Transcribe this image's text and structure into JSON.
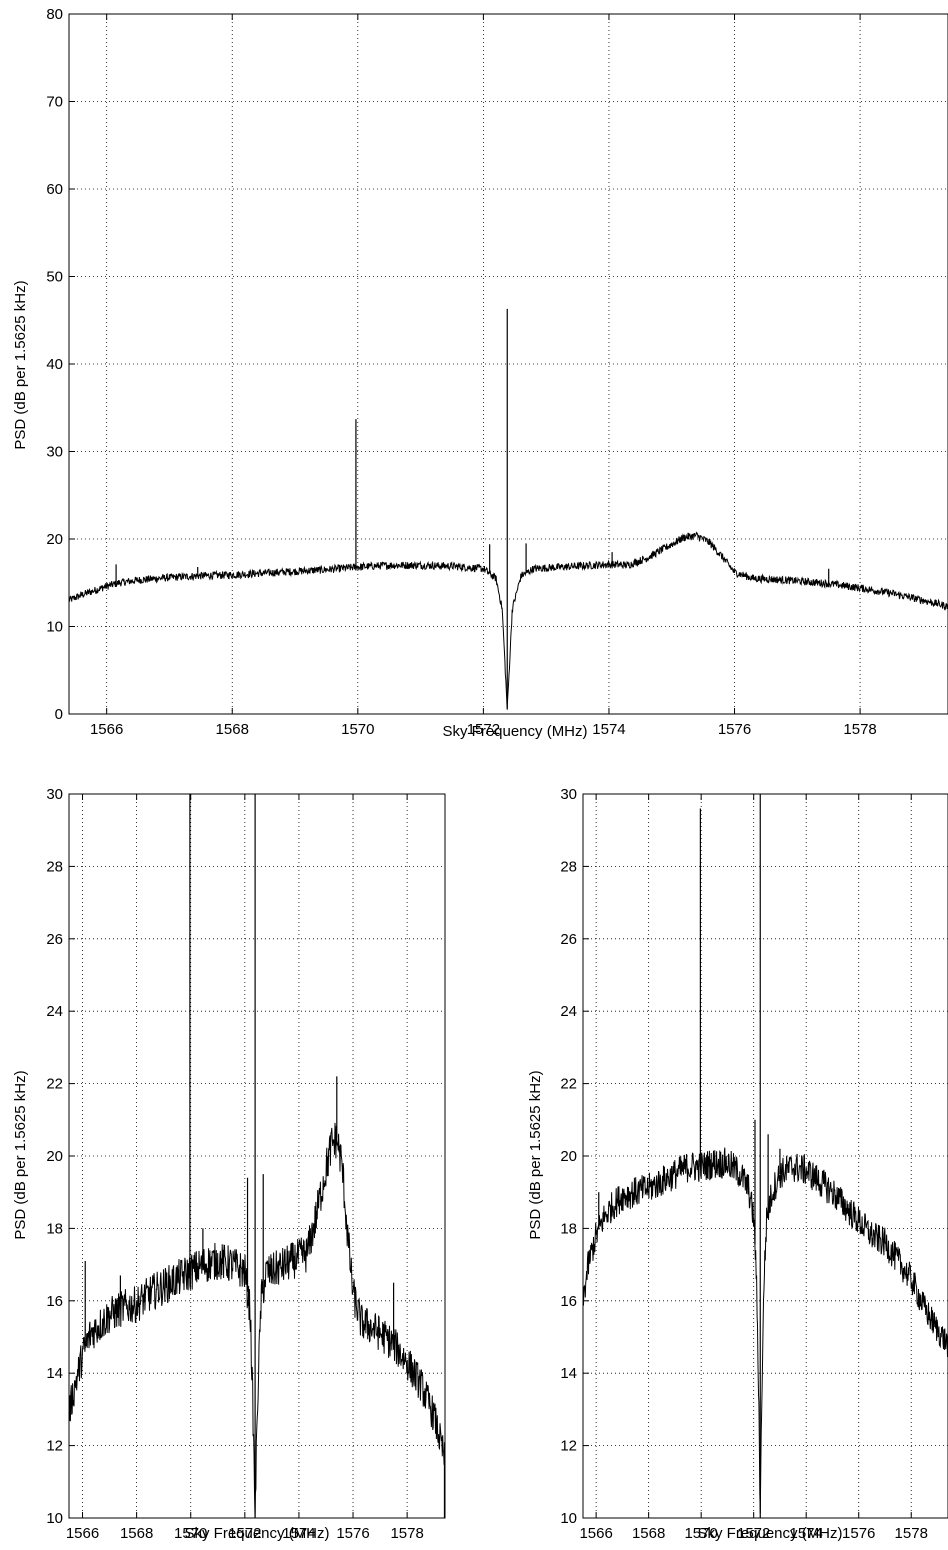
{
  "figure": {
    "background": "#ffffff",
    "line_color": "#000000",
    "grid_style": "dotted"
  },
  "chart_data": [
    {
      "id": "top",
      "type": "line",
      "title": "",
      "xlabel": "Sky Frequency (MHz)",
      "ylabel": "PSD (dB per 1.5625 kHz)",
      "xlim": [
        1565.4,
        1579.4
      ],
      "ylim": [
        0,
        80
      ],
      "xticks": [
        1566,
        1568,
        1570,
        1572,
        1574,
        1576,
        1578
      ],
      "yticks": [
        0,
        10,
        20,
        30,
        40,
        50,
        60,
        70,
        80
      ],
      "grid": true,
      "series": [
        {
          "x": [
            1565.4,
            1565.6,
            1565.8,
            1566.0,
            1566.2,
            1566.5,
            1567.0,
            1567.5,
            1568.0,
            1568.5,
            1569.0,
            1569.5,
            1570.0,
            1570.5,
            1571.0,
            1571.5,
            1572.0,
            1572.2,
            1572.3,
            1572.38,
            1572.46,
            1572.6,
            1572.8,
            1573.0,
            1573.5,
            1574.0,
            1574.3,
            1574.6,
            1574.9,
            1575.2,
            1575.4,
            1575.6,
            1575.8,
            1576.0,
            1576.3,
            1576.6,
            1577.0,
            1577.5,
            1578.0,
            1578.5,
            1579.0,
            1579.4
          ],
          "y": [
            13.0,
            13.6,
            14.1,
            14.6,
            15.0,
            15.3,
            15.6,
            15.8,
            15.9,
            16.1,
            16.3,
            16.5,
            16.8,
            17.0,
            17.0,
            16.9,
            16.6,
            15.5,
            12.0,
            0.5,
            12.0,
            15.8,
            16.6,
            16.7,
            16.9,
            17.1,
            17.0,
            17.8,
            19.0,
            20.2,
            20.4,
            19.6,
            18.0,
            16.2,
            15.5,
            15.4,
            15.2,
            14.9,
            14.4,
            13.8,
            13.0,
            12.3
          ],
          "noise": 0.4
        }
      ],
      "spikes": [
        {
          "x": 1566.15,
          "y": 17.1
        },
        {
          "x": 1567.45,
          "y": 16.8
        },
        {
          "x": 1569.97,
          "y": 33.7
        },
        {
          "x": 1572.1,
          "y": 19.4
        },
        {
          "x": 1572.38,
          "y": 46.3
        },
        {
          "x": 1572.68,
          "y": 19.5
        },
        {
          "x": 1574.05,
          "y": 18.5
        },
        {
          "x": 1577.5,
          "y": 16.6
        }
      ]
    },
    {
      "id": "bottom-left",
      "type": "line",
      "title": "",
      "xlabel": "Sky Frequency (MHz)",
      "ylabel": "PSD (dB per 1.5625 kHz)",
      "xlim": [
        1565.5,
        1579.4
      ],
      "ylim": [
        10,
        30
      ],
      "xticks": [
        1566,
        1568,
        1570,
        1572,
        1574,
        1576,
        1578
      ],
      "yticks": [
        10,
        12,
        14,
        16,
        18,
        20,
        22,
        24,
        26,
        28,
        30
      ],
      "grid": true,
      "series": [
        {
          "x": [
            1565.5,
            1565.7,
            1566.0,
            1566.3,
            1566.6,
            1567.0,
            1567.5,
            1568.0,
            1568.5,
            1569.0,
            1569.5,
            1570.0,
            1570.5,
            1571.0,
            1571.5,
            1572.0,
            1572.2,
            1572.3,
            1572.38,
            1572.46,
            1572.6,
            1572.8,
            1573.0,
            1573.5,
            1574.0,
            1574.3,
            1574.6,
            1574.9,
            1575.2,
            1575.4,
            1575.6,
            1575.8,
            1576.0,
            1576.3,
            1576.6,
            1577.0,
            1577.5,
            1578.0,
            1578.5,
            1579.0,
            1579.4
          ],
          "y": [
            12.9,
            13.6,
            14.5,
            15.1,
            15.3,
            15.6,
            15.8,
            15.9,
            16.2,
            16.4,
            16.6,
            16.8,
            17.0,
            17.1,
            17.0,
            16.8,
            15.7,
            13.0,
            10.0,
            13.0,
            16.0,
            16.8,
            16.8,
            17.0,
            17.2,
            17.3,
            18.2,
            19.3,
            20.3,
            20.5,
            19.7,
            17.8,
            16.2,
            15.4,
            15.3,
            15.1,
            14.8,
            14.3,
            13.7,
            12.8,
            11.6
          ],
          "noise": 0.45
        }
      ],
      "spikes": [
        {
          "x": 1566.1,
          "y": 17.1
        },
        {
          "x": 1567.4,
          "y": 16.7
        },
        {
          "x": 1569.97,
          "y": 30
        },
        {
          "x": 1570.45,
          "y": 18.0
        },
        {
          "x": 1572.1,
          "y": 19.4
        },
        {
          "x": 1572.38,
          "y": 30
        },
        {
          "x": 1572.68,
          "y": 19.5
        },
        {
          "x": 1575.4,
          "y": 22.2
        },
        {
          "x": 1577.5,
          "y": 16.5
        },
        {
          "x": 1579.38,
          "y": 10.0
        }
      ]
    },
    {
      "id": "bottom-right",
      "type": "line",
      "title": "",
      "xlabel": "Sky Frequency (MHz)",
      "ylabel": "PSD (dB per 1.5625 kHz)",
      "xlim": [
        1565.5,
        1579.4
      ],
      "ylim": [
        10,
        30
      ],
      "xticks": [
        1566,
        1568,
        1570,
        1572,
        1574,
        1576,
        1578
      ],
      "yticks": [
        10,
        12,
        14,
        16,
        18,
        20,
        22,
        24,
        26,
        28,
        30
      ],
      "grid": true,
      "series": [
        {
          "x": [
            1565.5,
            1565.7,
            1566.0,
            1566.3,
            1566.6,
            1567.0,
            1567.5,
            1568.0,
            1568.5,
            1569.0,
            1569.5,
            1570.0,
            1570.5,
            1571.0,
            1571.5,
            1571.8,
            1572.0,
            1572.1,
            1572.2,
            1572.25,
            1572.3,
            1572.4,
            1572.5,
            1572.7,
            1573.0,
            1573.5,
            1574.0,
            1574.5,
            1575.0,
            1575.5,
            1576.0,
            1576.5,
            1577.0,
            1577.5,
            1578.0,
            1578.5,
            1579.0,
            1579.4
          ],
          "y": [
            16.0,
            17.0,
            17.8,
            18.3,
            18.6,
            18.9,
            19.0,
            19.1,
            19.3,
            19.5,
            19.7,
            19.7,
            19.8,
            19.8,
            19.5,
            19.1,
            18.3,
            16.8,
            13.0,
            10.0,
            13.0,
            16.8,
            18.3,
            19.0,
            19.5,
            19.7,
            19.6,
            19.3,
            19.0,
            18.6,
            18.2,
            17.8,
            17.6,
            17.1,
            16.6,
            15.8,
            15.2,
            14.8
          ],
          "noise": 0.35
        }
      ],
      "spikes": [
        {
          "x": 1566.1,
          "y": 19.0
        },
        {
          "x": 1569.97,
          "y": 29.6
        },
        {
          "x": 1572.05,
          "y": 21.0
        },
        {
          "x": 1572.25,
          "y": 30
        },
        {
          "x": 1572.55,
          "y": 20.6
        },
        {
          "x": 1573.0,
          "y": 20.2
        }
      ]
    }
  ]
}
